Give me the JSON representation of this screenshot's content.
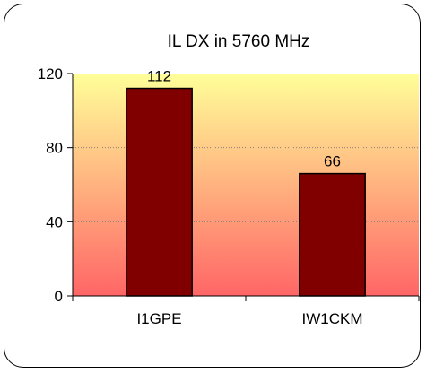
{
  "chart_data": {
    "type": "bar",
    "title": "IL DX in 5760 MHz",
    "categories": [
      "I1GPE",
      "IW1CKM"
    ],
    "values": [
      112,
      66
    ],
    "data_labels": [
      "112",
      "66"
    ],
    "xlabel": "",
    "ylabel": "",
    "ylim": [
      0,
      120
    ],
    "yticks": [
      0,
      40,
      80,
      120
    ],
    "ytick_labels": [
      "0",
      "40",
      "80",
      "120"
    ],
    "grid": true,
    "legend": "none",
    "colors": {
      "bar": "#800000",
      "bar_edge": "#000000",
      "plot_bg_top": "#FFFF99",
      "plot_bg_bottom": "#FF6666",
      "gridline": "#808080"
    }
  }
}
